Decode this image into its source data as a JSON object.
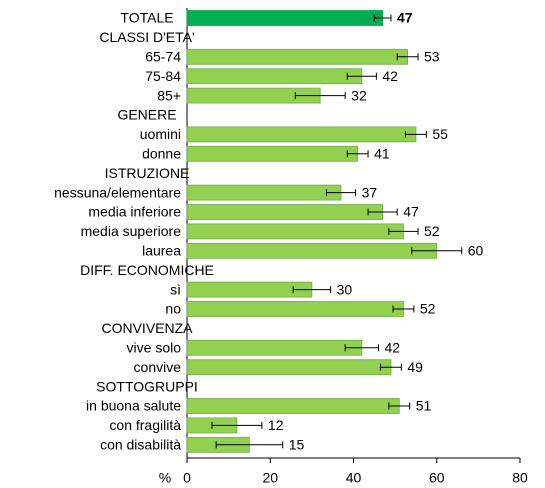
{
  "chart_data": {
    "type": "bar",
    "orientation": "horizontal",
    "categories": [
      "TOTALE",
      "CLASSI D'ETA'",
      "65-74",
      "75-84",
      "85+",
      "GENERE",
      "uomini",
      "donne",
      "ISTRUZIONE",
      "nessuna/elementare",
      "media inferiore",
      "media superiore",
      "laurea",
      "DIFF. ECONOMICHE",
      "sì",
      "no",
      "CONVIVENZA",
      "vive solo",
      "convive",
      "SOTTOGRUPPI",
      "in buona salute",
      "con fragilità",
      "con disabilità"
    ],
    "values": [
      47,
      null,
      53,
      42,
      32,
      null,
      55,
      41,
      null,
      37,
      47,
      52,
      60,
      null,
      30,
      52,
      null,
      42,
      49,
      null,
      51,
      12,
      15
    ],
    "errors": [
      2,
      null,
      2.5,
      3.5,
      6,
      null,
      2.5,
      2.5,
      null,
      3.5,
      3.5,
      3.5,
      6,
      null,
      4.5,
      2.5,
      null,
      4,
      2.5,
      null,
      2.5,
      6,
      8
    ],
    "color": "#92d050",
    "highlight": {
      "index": 0,
      "color": "#00b050"
    },
    "xlabel": "%",
    "xlim": [
      0,
      80
    ],
    "xticks": [
      0,
      20,
      40,
      60,
      80
    ]
  }
}
